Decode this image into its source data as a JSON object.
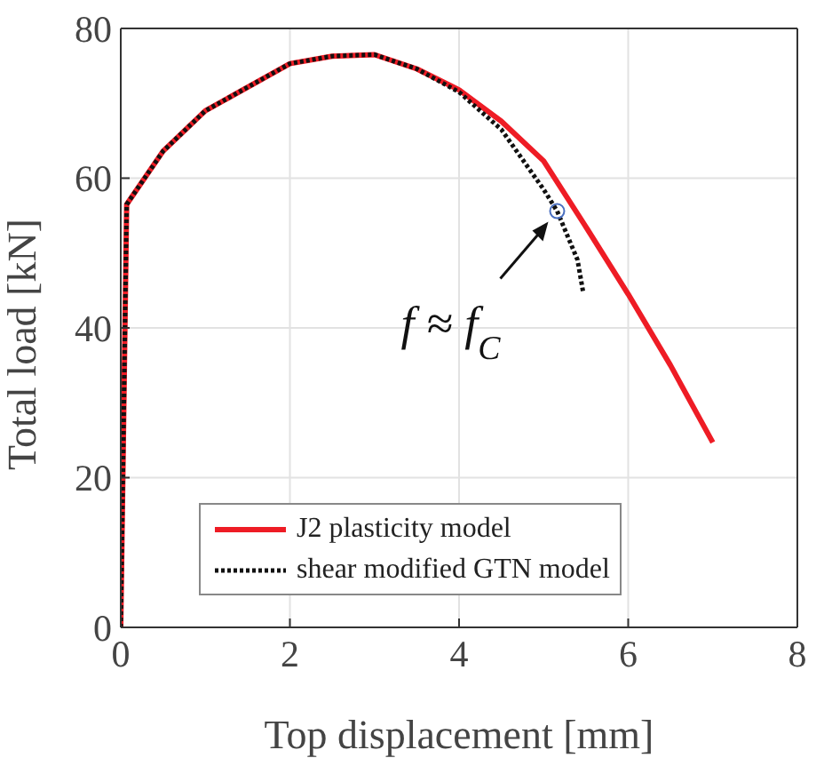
{
  "chart_data": {
    "type": "line",
    "xlabel": "Top displacement [mm]",
    "ylabel": "Total load [kN]",
    "xlim": [
      0,
      8
    ],
    "xticks": [
      0,
      2,
      4,
      6,
      8
    ],
    "ylim": [
      0,
      80
    ],
    "yticks": [
      0,
      20,
      40,
      60,
      80
    ],
    "grid": true,
    "legend": "bottom left",
    "marker": "none",
    "series": [
      {
        "name": "J2 plasticity model",
        "color": "#ee1c25",
        "line_style": "solid",
        "x": [
          0,
          0.07,
          0.5,
          1,
          2,
          2.5,
          3,
          3.5,
          4,
          4.5,
          5,
          5.5,
          6,
          6.5,
          7
        ],
        "values": [
          0,
          56.5,
          63.6,
          69,
          75.3,
          76.3,
          76.5,
          74.6,
          71.8,
          67.6,
          62.3,
          53.5,
          44.5,
          35,
          24.7
        ]
      },
      {
        "name": "shear modified GTN model",
        "color": "#111111",
        "line_style": "dotted",
        "x": [
          0,
          0.07,
          0.5,
          1,
          2,
          2.5,
          3,
          3.5,
          4,
          4.5,
          5,
          5.16,
          5.4,
          5.47
        ],
        "values": [
          0,
          56.5,
          63.6,
          69,
          75.3,
          76.3,
          76.5,
          74.6,
          71.5,
          66.5,
          58.5,
          55.6,
          49.1,
          44.6
        ]
      }
    ],
    "annotations": [
      {
        "text": "f ≈ f$_{C}$",
        "x": 5.16,
        "y": 55.6
      }
    ]
  }
}
